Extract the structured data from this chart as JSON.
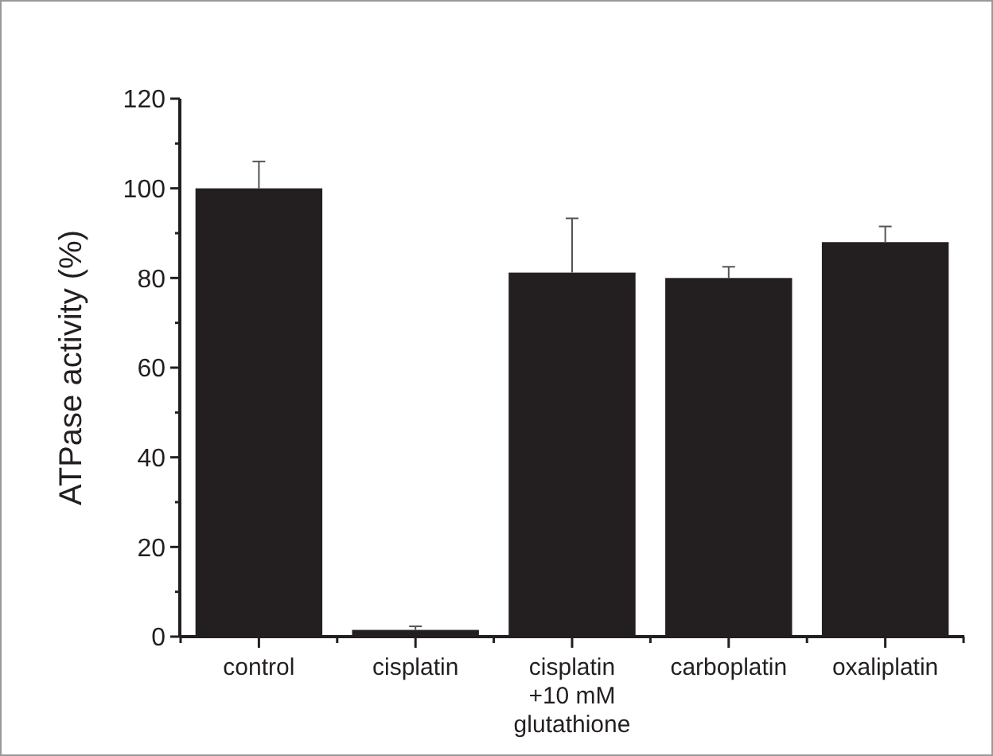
{
  "chart_data": {
    "type": "bar",
    "ylabel": "ATPase activity (%)",
    "categories": [
      "control",
      "cisplatin",
      "cisplatin\n+10 mM\nglutathione",
      "carboplatin",
      "oxaliplatin"
    ],
    "values": [
      100,
      1.5,
      81.2,
      80,
      88
    ],
    "errors": [
      [
        100,
        106
      ],
      [
        1.5,
        2.3
      ],
      [
        81.2,
        93.3
      ],
      [
        80,
        82.5
      ],
      [
        88,
        91.5
      ]
    ],
    "color": "#231f20",
    "ylim": [
      0,
      120
    ],
    "yticks": [
      0,
      {
        "value": 10,
        "label": null
      },
      20,
      {
        "value": 30,
        "label": null
      },
      40,
      {
        "value": 50,
        "label": null
      },
      60,
      {
        "value": 70,
        "label": null
      },
      80,
      {
        "value": 90,
        "label": null
      },
      100,
      {
        "value": 110,
        "label": null
      },
      120
    ]
  }
}
